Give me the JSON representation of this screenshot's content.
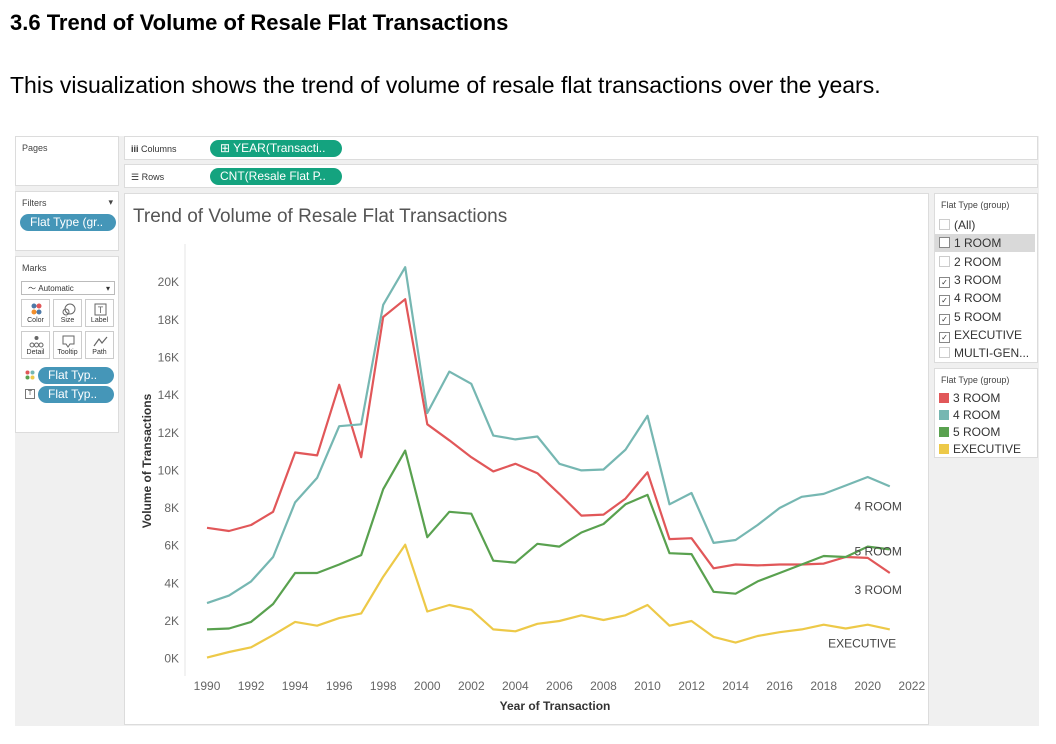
{
  "page": {
    "heading": "3.6 Trend of Volume of Resale Flat Transactions",
    "intro": "This visualization shows the trend of volume of resale flat transactions over the years."
  },
  "workbook": {
    "pages_label": "Pages",
    "columns_label": "Columns",
    "rows_label": "Rows",
    "columns_pill": "⊞ YEAR(Transacti..",
    "rows_pill": "CNT(Resale Flat P..",
    "filters_label": "Filters",
    "filter_pill": "Flat Type (gr..",
    "marks_label": "Marks",
    "mark_type": "Automatic",
    "mark_buttons": [
      {
        "label": "Color",
        "icon": "color-icon"
      },
      {
        "label": "Size",
        "icon": "size-icon"
      },
      {
        "label": "Label",
        "icon": "label-icon"
      },
      {
        "label": "Detail",
        "icon": "detail-icon"
      },
      {
        "label": "Tooltip",
        "icon": "tooltip-icon"
      },
      {
        "label": "Path",
        "icon": "path-icon"
      }
    ],
    "mark_pill_1": "Flat Typ..",
    "mark_pill_2": "Flat Typ..",
    "filter_card": {
      "title": "Flat Type (group)",
      "items": [
        {
          "label": "(All)",
          "checked": false,
          "dim": true
        },
        {
          "label": "1 ROOM",
          "checked": false,
          "dim": false
        },
        {
          "label": "2 ROOM",
          "checked": false,
          "dim": true
        },
        {
          "label": "3 ROOM",
          "checked": true,
          "dim": false
        },
        {
          "label": "4 ROOM",
          "checked": true,
          "dim": false
        },
        {
          "label": "5 ROOM",
          "checked": true,
          "dim": false
        },
        {
          "label": "EXECUTIVE",
          "checked": true,
          "dim": false
        },
        {
          "label": "MULTI-GEN...",
          "checked": false,
          "dim": true
        }
      ]
    },
    "legend": {
      "title": "Flat Type (group)",
      "items": [
        {
          "label": "3 ROOM",
          "color": "#e15759"
        },
        {
          "label": "4 ROOM",
          "color": "#76b7b2"
        },
        {
          "label": "5 ROOM",
          "color": "#59a14f"
        },
        {
          "label": "EXECUTIVE",
          "color": "#edc948"
        }
      ]
    }
  },
  "chart_data": {
    "type": "line",
    "title": "Trend of Volume of Resale Flat Transactions",
    "xlabel": "Year of Transaction",
    "ylabel": "Volume of Transactions",
    "xlim": [
      1989,
      2022.6
    ],
    "ylim": [
      -500,
      21500
    ],
    "x_ticks": [
      1990,
      1992,
      1994,
      1996,
      1998,
      2000,
      2002,
      2004,
      2006,
      2008,
      2010,
      2012,
      2014,
      2016,
      2018,
      2020,
      2022
    ],
    "y_ticks": [
      0,
      2000,
      4000,
      6000,
      8000,
      10000,
      12000,
      14000,
      16000,
      18000,
      20000
    ],
    "y_tick_labels": [
      "0K",
      "2K",
      "4K",
      "6K",
      "8K",
      "10K",
      "12K",
      "14K",
      "16K",
      "18K",
      "20K"
    ],
    "grid": false,
    "x": [
      1990,
      1991,
      1992,
      1993,
      1994,
      1995,
      1996,
      1997,
      1998,
      1999,
      2000,
      2001,
      2002,
      2003,
      2004,
      2005,
      2006,
      2007,
      2008,
      2009,
      2010,
      2011,
      2012,
      2013,
      2014,
      2015,
      2016,
      2017,
      2018,
      2019,
      2020,
      2021
    ],
    "series": [
      {
        "name": "3 ROOM",
        "color": "#e15759",
        "end_label": "3 ROOM",
        "values": [
          6950,
          6780,
          7100,
          7800,
          10950,
          10800,
          14550,
          10700,
          18150,
          19100,
          12450,
          11600,
          10700,
          9950,
          10350,
          9850,
          8750,
          7600,
          7650,
          8500,
          9900,
          6350,
          6400,
          4800,
          5000,
          4950,
          5000,
          5000,
          5050,
          5400,
          5350,
          4550
        ]
      },
      {
        "name": "4 ROOM",
        "color": "#76b7b2",
        "end_label": "4 ROOM",
        "values": [
          2950,
          3350,
          4100,
          5400,
          8300,
          9600,
          12350,
          12450,
          18800,
          20800,
          13050,
          15250,
          14600,
          11850,
          11650,
          11800,
          10350,
          10000,
          10050,
          11100,
          12900,
          8200,
          8800,
          6150,
          6300,
          7100,
          8000,
          8600,
          8750,
          9200,
          9650,
          9150
        ]
      },
      {
        "name": "5 ROOM",
        "color": "#59a14f",
        "end_label": "5 ROOM",
        "values": [
          1550,
          1600,
          1950,
          2900,
          4550,
          4550,
          5000,
          5500,
          9000,
          11050,
          6450,
          7800,
          7700,
          5200,
          5100,
          6100,
          5950,
          6700,
          7150,
          8200,
          8700,
          5600,
          5550,
          3550,
          3450,
          4100,
          4550,
          5000,
          5450,
          5400,
          5950,
          5800
        ]
      },
      {
        "name": "EXECUTIVE",
        "color": "#edc948",
        "end_label": "EXECUTIVE",
        "values": [
          50,
          350,
          600,
          1250,
          1950,
          1750,
          2150,
          2400,
          4350,
          6050,
          2500,
          2850,
          2600,
          1550,
          1450,
          1850,
          2000,
          2300,
          2050,
          2300,
          2850,
          1750,
          2000,
          1150,
          850,
          1200,
          1400,
          1550,
          1800,
          1600,
          1800,
          1550
        ]
      }
    ]
  }
}
